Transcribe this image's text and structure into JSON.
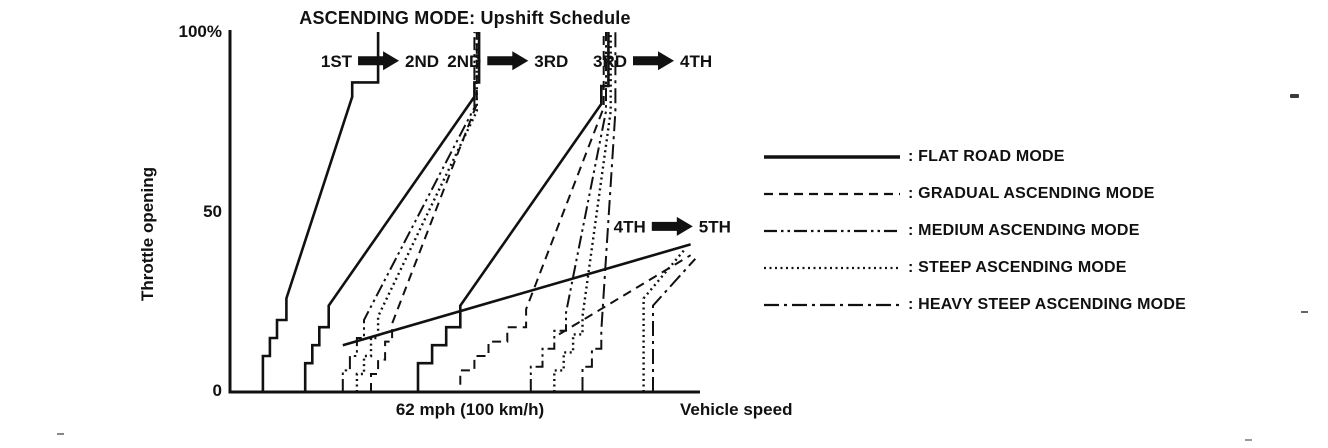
{
  "chart_data": {
    "type": "line",
    "title": "ASCENDING MODE: Upshift Schedule",
    "y_axis": {
      "label": "Throttle opening",
      "ticks": [
        "100%",
        "50",
        "0"
      ],
      "range_percent": [
        0,
        100
      ]
    },
    "x_axis": {
      "label": "Vehicle speed",
      "tick_label": "62 mph (100 km/h)",
      "tick_position": 51
    },
    "legend": [
      {
        "style": "solid",
        "label": ": FLAT ROAD MODE"
      },
      {
        "style": "dashed",
        "label": ": GRADUAL ASCENDING MODE"
      },
      {
        "style": "dash-dot-dot",
        "label": ": MEDIUM ASCENDING MODE"
      },
      {
        "style": "dotted",
        "label": ": STEEP ASCENDING MODE"
      },
      {
        "style": "dash-dot",
        "label": ": HEAVY STEEP ASCENDING MODE"
      }
    ],
    "shift_arrows": [
      {
        "from": "1ST",
        "to": "2ND",
        "speed": 31.5,
        "throttle": 92
      },
      {
        "from": "2ND",
        "to": "3RD",
        "speed": 59,
        "throttle": 92
      },
      {
        "from": "3RD",
        "to": "4TH",
        "speed": 90,
        "throttle": 92
      },
      {
        "from": "4TH",
        "to": "5TH",
        "speed": 94,
        "throttle": 46
      }
    ],
    "series": [
      {
        "name": "flat-road-1-2",
        "mode": "FLAT ROAD MODE",
        "shift": "1-2",
        "style": "solid",
        "points": [
          [
            7,
            0
          ],
          [
            7,
            10
          ],
          [
            8.5,
            10
          ],
          [
            8.5,
            15
          ],
          [
            10,
            15
          ],
          [
            10,
            20
          ],
          [
            12,
            20
          ],
          [
            12,
            26
          ],
          [
            26,
            82
          ],
          [
            26,
            86
          ],
          [
            31.5,
            86
          ],
          [
            31.5,
            100
          ]
        ]
      },
      {
        "name": "flat-road-2-3",
        "mode": "FLAT ROAD MODE",
        "shift": "2-3",
        "style": "solid",
        "points": [
          [
            16,
            0
          ],
          [
            16,
            8
          ],
          [
            17.5,
            8
          ],
          [
            17.5,
            13
          ],
          [
            19,
            13
          ],
          [
            19,
            18
          ],
          [
            21,
            18
          ],
          [
            21,
            24
          ],
          [
            52,
            82
          ],
          [
            52,
            86
          ],
          [
            53,
            86
          ],
          [
            53,
            100
          ]
        ]
      },
      {
        "name": "flat-road-3-4",
        "mode": "FLAT ROAD MODE",
        "shift": "3-4",
        "style": "solid",
        "points": [
          [
            40,
            0
          ],
          [
            40,
            8
          ],
          [
            43,
            8
          ],
          [
            43,
            13
          ],
          [
            46,
            13
          ],
          [
            46,
            18
          ],
          [
            49,
            18
          ],
          [
            49,
            24
          ],
          [
            79,
            80
          ],
          [
            79,
            85
          ],
          [
            80.5,
            85
          ],
          [
            80.5,
            100
          ]
        ]
      },
      {
        "name": "flat-road-4-5",
        "mode": "FLAT ROAD MODE",
        "shift": "4-5",
        "style": "solid",
        "points": [
          [
            24,
            13
          ],
          [
            98,
            41
          ]
        ]
      },
      {
        "name": "gradual-ascending-2-3",
        "mode": "GRADUAL ASCENDING MODE",
        "shift": "2-3",
        "style": "dashed",
        "points": [
          [
            30,
            0
          ],
          [
            30,
            5
          ],
          [
            31.5,
            5
          ],
          [
            31.5,
            9
          ],
          [
            33,
            9
          ],
          [
            33,
            14
          ],
          [
            34.5,
            14
          ],
          [
            34.5,
            19
          ],
          [
            52.5,
            80
          ],
          [
            52.5,
            100
          ]
        ]
      },
      {
        "name": "gradual-ascending-3-4",
        "mode": "GRADUAL ASCENDING MODE",
        "shift": "3-4",
        "style": "dashed",
        "points": [
          [
            49,
            2
          ],
          [
            49,
            6
          ],
          [
            52,
            6
          ],
          [
            52,
            10
          ],
          [
            55,
            10
          ],
          [
            55,
            14
          ],
          [
            59,
            14
          ],
          [
            59,
            18
          ],
          [
            63,
            18
          ],
          [
            63,
            23
          ],
          [
            79.5,
            79
          ],
          [
            79.5,
            100
          ]
        ]
      },
      {
        "name": "gradual-ascending-4-5",
        "mode": "GRADUAL ASCENDING MODE",
        "shift": "4-5",
        "style": "dashed",
        "points": [
          [
            70,
            16
          ],
          [
            98,
            38
          ]
        ]
      },
      {
        "name": "medium-ascending-2-3",
        "mode": "MEDIUM ASCENDING MODE",
        "shift": "2-3",
        "style": "dash-dot-dot",
        "points": [
          [
            24,
            0
          ],
          [
            24,
            6
          ],
          [
            25.5,
            6
          ],
          [
            25.5,
            10
          ],
          [
            27,
            10
          ],
          [
            27,
            15
          ],
          [
            28.5,
            15
          ],
          [
            28.5,
            20
          ],
          [
            52,
            79
          ],
          [
            52,
            100
          ]
        ]
      },
      {
        "name": "medium-ascending-3-4",
        "mode": "MEDIUM ASCENDING MODE",
        "shift": "3-4",
        "style": "dash-dot-dot",
        "points": [
          [
            64,
            0
          ],
          [
            64,
            7
          ],
          [
            66.5,
            7
          ],
          [
            66.5,
            12
          ],
          [
            69,
            12
          ],
          [
            69,
            17
          ],
          [
            71.5,
            17
          ],
          [
            71.5,
            22
          ],
          [
            80,
            78
          ],
          [
            80,
            100
          ]
        ]
      },
      {
        "name": "steep-ascending-2-3",
        "mode": "STEEP ASCENDING MODE",
        "shift": "2-3",
        "style": "dotted",
        "points": [
          [
            27,
            0
          ],
          [
            27,
            5
          ],
          [
            28.5,
            5
          ],
          [
            28.5,
            10
          ],
          [
            30,
            10
          ],
          [
            30,
            15
          ],
          [
            31.5,
            15
          ],
          [
            31.5,
            21
          ],
          [
            52.5,
            78
          ],
          [
            52.5,
            100
          ]
        ]
      },
      {
        "name": "steep-ascending-3-4",
        "mode": "STEEP ASCENDING MODE",
        "shift": "3-4",
        "style": "dotted",
        "points": [
          [
            69,
            0
          ],
          [
            69,
            6
          ],
          [
            71,
            6
          ],
          [
            71,
            11
          ],
          [
            73,
            11
          ],
          [
            73,
            16
          ],
          [
            75,
            16
          ],
          [
            75,
            21
          ],
          [
            81,
            78
          ],
          [
            81,
            100
          ]
        ]
      },
      {
        "name": "steep-ascending-4-5",
        "mode": "STEEP ASCENDING MODE",
        "shift": "4-5",
        "style": "dotted",
        "points": [
          [
            88,
            0
          ],
          [
            88,
            26
          ],
          [
            97,
            40
          ]
        ]
      },
      {
        "name": "heavy-steep-ascending-3-4",
        "mode": "HEAVY STEEP ASCENDING MODE",
        "shift": "3-4",
        "style": "dash-dot",
        "points": [
          [
            75,
            0
          ],
          [
            75,
            7
          ],
          [
            77,
            7
          ],
          [
            77,
            12
          ],
          [
            79,
            12
          ],
          [
            79,
            17
          ],
          [
            82,
            78
          ],
          [
            82,
            100
          ]
        ]
      },
      {
        "name": "heavy-steep-ascending-4-5",
        "mode": "HEAVY STEEP ASCENDING MODE",
        "shift": "4-5",
        "style": "dash-dot",
        "points": [
          [
            90,
            0
          ],
          [
            90,
            24
          ],
          [
            99,
            37
          ]
        ]
      }
    ]
  },
  "colors": {
    "ink": "#111111",
    "background": "#ffffff"
  }
}
